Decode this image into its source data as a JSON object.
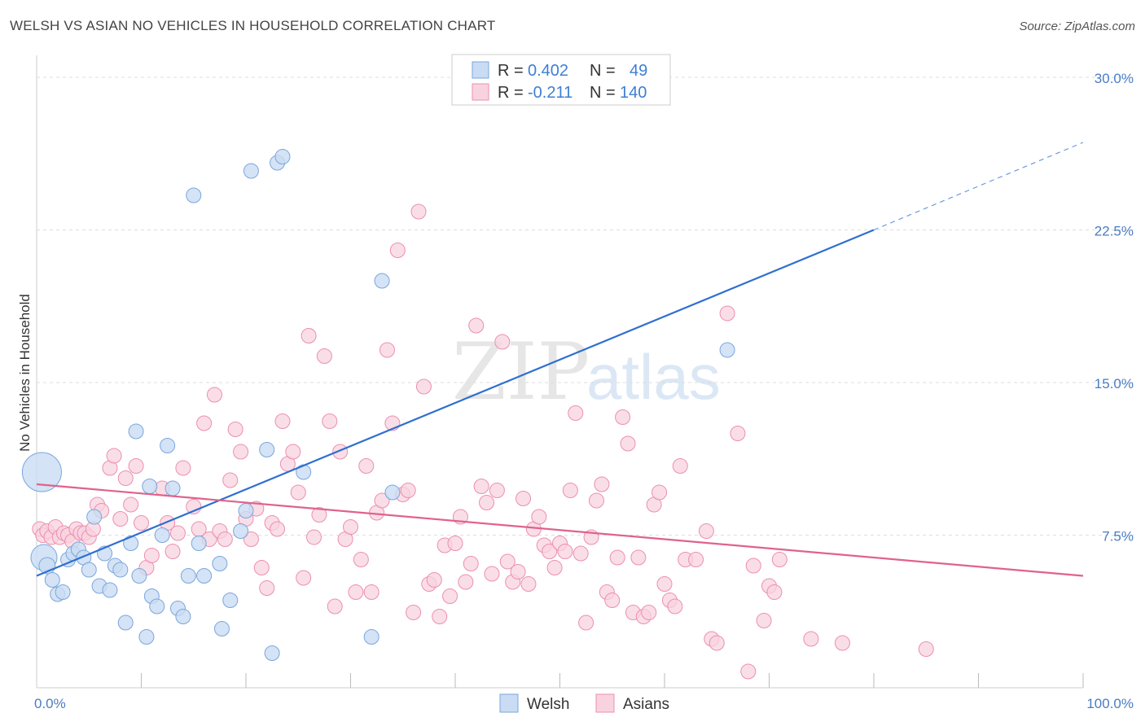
{
  "title": "WELSH VS ASIAN NO VEHICLES IN HOUSEHOLD CORRELATION CHART",
  "source": "Source: ZipAtlas.com",
  "watermark": {
    "zip": "ZIP",
    "atlas": "atlas"
  },
  "colors": {
    "welsh_fill": "#c9dcf3",
    "welsh_stroke": "#7aa6de",
    "welsh_line": "#2f6fd0",
    "asian_fill": "#f8d3df",
    "asian_stroke": "#ec8fae",
    "asian_line": "#e0628c",
    "grid": "#dddddd",
    "axis_label": "#4a7cc4"
  },
  "legend": {
    "welsh": {
      "r_label": "R =",
      "r_value": "0.402",
      "n_label": "N =",
      "n_value": "49"
    },
    "asians": {
      "r_label": "R =",
      "r_value": "-0.211",
      "n_label": "N =",
      "n_value": "140"
    }
  },
  "chart_data": {
    "type": "scatter",
    "title": "WELSH VS ASIAN NO VEHICLES IN HOUSEHOLD CORRELATION CHART",
    "xlabel": "",
    "ylabel": "No Vehicles in Household",
    "xlim": [
      0,
      100
    ],
    "ylim": [
      0,
      30
    ],
    "x_tick_labels": [
      "0.0%",
      "100.0%"
    ],
    "y_ticks": [
      7.5,
      15.0,
      22.5,
      30.0
    ],
    "y_tick_labels": [
      "7.5%",
      "15.0%",
      "22.5%",
      "30.0%"
    ],
    "grid": true,
    "legend_position": "top-center",
    "series": [
      {
        "name": "Welsh",
        "r": 0.402,
        "n": 49,
        "trend": {
          "x0": 0,
          "y0": 5.5,
          "x1": 80,
          "y1": 22.5,
          "dashed_to_x": 100,
          "dashed_to_y": 26.8
        },
        "points": [
          [
            0.5,
            10.6,
            24
          ],
          [
            0.7,
            6.4,
            16
          ],
          [
            1.0,
            6.0,
            10
          ],
          [
            1.5,
            5.3,
            9
          ],
          [
            2.0,
            4.6,
            9
          ],
          [
            2.5,
            4.7,
            9
          ],
          [
            3.0,
            6.3,
            9
          ],
          [
            3.5,
            6.6,
            9
          ],
          [
            4.0,
            6.8,
            9
          ],
          [
            4.5,
            6.4,
            9
          ],
          [
            5.0,
            5.8,
            9
          ],
          [
            5.5,
            8.4,
            9
          ],
          [
            6.0,
            5.0,
            9
          ],
          [
            6.5,
            6.6,
            9
          ],
          [
            7.0,
            4.8,
            9
          ],
          [
            7.5,
            6.0,
            9
          ],
          [
            8.0,
            5.8,
            9
          ],
          [
            8.5,
            3.2,
            9
          ],
          [
            9.0,
            7.1,
            9
          ],
          [
            9.5,
            12.6,
            9
          ],
          [
            9.8,
            5.5,
            9
          ],
          [
            10.5,
            2.5,
            9
          ],
          [
            10.8,
            9.9,
            9
          ],
          [
            11.0,
            4.5,
            9
          ],
          [
            11.5,
            4.0,
            9
          ],
          [
            12.0,
            7.5,
            9
          ],
          [
            12.5,
            11.9,
            9
          ],
          [
            13.0,
            9.8,
            9
          ],
          [
            13.5,
            3.9,
            9
          ],
          [
            14.0,
            3.5,
            9
          ],
          [
            14.5,
            5.5,
            9
          ],
          [
            15.0,
            24.2,
            9
          ],
          [
            15.5,
            7.1,
            9
          ],
          [
            16.0,
            5.5,
            9
          ],
          [
            17.5,
            6.1,
            9
          ],
          [
            17.7,
            2.9,
            9
          ],
          [
            18.5,
            4.3,
            9
          ],
          [
            19.5,
            7.7,
            9
          ],
          [
            20.0,
            8.7,
            9
          ],
          [
            20.5,
            25.4,
            9
          ],
          [
            22.0,
            11.7,
            9
          ],
          [
            22.5,
            1.7,
            9
          ],
          [
            23.0,
            25.8,
            9
          ],
          [
            23.5,
            26.1,
            9
          ],
          [
            25.5,
            10.6,
            9
          ],
          [
            32.0,
            2.5,
            9
          ],
          [
            33.0,
            20.0,
            9
          ],
          [
            34.0,
            9.6,
            9
          ],
          [
            66.0,
            16.6,
            9
          ]
        ]
      },
      {
        "name": "Asians",
        "r": -0.211,
        "n": 140,
        "trend": {
          "x0": 0,
          "y0": 10.0,
          "x1": 100,
          "y1": 5.5
        },
        "points": [
          [
            0.3,
            7.8,
            9
          ],
          [
            0.6,
            7.5,
            9
          ],
          [
            1.0,
            7.7,
            9
          ],
          [
            1.4,
            7.4,
            9
          ],
          [
            1.8,
            7.9,
            9
          ],
          [
            2.2,
            7.4,
            9
          ],
          [
            2.6,
            7.6,
            9
          ],
          [
            3.0,
            7.5,
            9
          ],
          [
            3.4,
            7.2,
            9
          ],
          [
            3.8,
            7.8,
            9
          ],
          [
            4.2,
            7.6,
            9
          ],
          [
            4.6,
            7.6,
            9
          ],
          [
            5.0,
            7.4,
            9
          ],
          [
            5.4,
            7.8,
            9
          ],
          [
            5.8,
            9.0,
            9
          ],
          [
            6.2,
            8.7,
            9
          ],
          [
            7.0,
            10.8,
            9
          ],
          [
            7.4,
            11.4,
            9
          ],
          [
            8.0,
            8.3,
            9
          ],
          [
            8.5,
            10.3,
            9
          ],
          [
            9.0,
            9.0,
            9
          ],
          [
            9.5,
            10.9,
            9
          ],
          [
            10.0,
            8.1,
            9
          ],
          [
            10.5,
            5.9,
            9
          ],
          [
            11.0,
            6.5,
            9
          ],
          [
            12.0,
            9.8,
            9
          ],
          [
            12.5,
            8.1,
            9
          ],
          [
            13.0,
            6.7,
            9
          ],
          [
            13.5,
            7.6,
            9
          ],
          [
            14.0,
            10.8,
            9
          ],
          [
            15.0,
            8.9,
            9
          ],
          [
            15.5,
            7.8,
            9
          ],
          [
            16.0,
            13.0,
            9
          ],
          [
            16.5,
            7.3,
            9
          ],
          [
            17.0,
            14.4,
            9
          ],
          [
            17.5,
            7.7,
            9
          ],
          [
            18.0,
            7.3,
            9
          ],
          [
            18.5,
            10.2,
            9
          ],
          [
            19.0,
            12.7,
            9
          ],
          [
            19.5,
            11.6,
            9
          ],
          [
            20.0,
            8.3,
            9
          ],
          [
            20.5,
            7.3,
            9
          ],
          [
            21.0,
            8.8,
            9
          ],
          [
            21.5,
            5.9,
            9
          ],
          [
            22.0,
            4.9,
            9
          ],
          [
            22.5,
            8.1,
            9
          ],
          [
            23.0,
            7.8,
            9
          ],
          [
            23.5,
            13.1,
            9
          ],
          [
            24.0,
            11.0,
            9
          ],
          [
            24.5,
            11.6,
            9
          ],
          [
            25.0,
            9.6,
            9
          ],
          [
            25.5,
            5.4,
            9
          ],
          [
            26.0,
            17.3,
            9
          ],
          [
            26.5,
            7.4,
            9
          ],
          [
            27.0,
            8.5,
            9
          ],
          [
            27.5,
            16.3,
            9
          ],
          [
            28.0,
            13.1,
            9
          ],
          [
            28.5,
            4.0,
            9
          ],
          [
            29.0,
            11.6,
            9
          ],
          [
            29.5,
            7.3,
            9
          ],
          [
            30.0,
            7.9,
            9
          ],
          [
            30.5,
            4.7,
            9
          ],
          [
            31.0,
            6.3,
            9
          ],
          [
            31.5,
            10.9,
            9
          ],
          [
            32.0,
            4.7,
            9
          ],
          [
            32.5,
            8.6,
            9
          ],
          [
            33.0,
            9.2,
            9
          ],
          [
            33.5,
            16.6,
            9
          ],
          [
            34.0,
            13.0,
            9
          ],
          [
            34.5,
            21.5,
            9
          ],
          [
            35.0,
            9.5,
            9
          ],
          [
            35.5,
            9.7,
            9
          ],
          [
            36.0,
            3.7,
            9
          ],
          [
            36.5,
            23.4,
            9
          ],
          [
            37.0,
            14.8,
            9
          ],
          [
            37.5,
            5.1,
            9
          ],
          [
            38.0,
            5.3,
            9
          ],
          [
            38.5,
            3.5,
            9
          ],
          [
            39.0,
            7.0,
            9
          ],
          [
            39.5,
            4.5,
            9
          ],
          [
            40.0,
            7.1,
            9
          ],
          [
            40.5,
            8.4,
            9
          ],
          [
            41.0,
            5.2,
            9
          ],
          [
            41.5,
            6.1,
            9
          ],
          [
            42.0,
            17.8,
            9
          ],
          [
            42.5,
            9.9,
            9
          ],
          [
            43.0,
            9.1,
            9
          ],
          [
            43.5,
            5.6,
            9
          ],
          [
            44.0,
            9.7,
            9
          ],
          [
            44.5,
            17.0,
            9
          ],
          [
            45.0,
            6.2,
            9
          ],
          [
            45.5,
            5.2,
            9
          ],
          [
            46.0,
            5.7,
            9
          ],
          [
            46.5,
            9.3,
            9
          ],
          [
            47.0,
            5.1,
            9
          ],
          [
            47.5,
            7.8,
            9
          ],
          [
            48.0,
            8.4,
            9
          ],
          [
            48.5,
            7.0,
            9
          ],
          [
            49.0,
            6.7,
            9
          ],
          [
            49.5,
            5.9,
            9
          ],
          [
            50.0,
            7.1,
            9
          ],
          [
            50.5,
            6.7,
            9
          ],
          [
            51.0,
            9.7,
            9
          ],
          [
            51.5,
            13.5,
            9
          ],
          [
            52.0,
            6.6,
            9
          ],
          [
            52.5,
            3.2,
            9
          ],
          [
            53.0,
            7.4,
            9
          ],
          [
            53.5,
            9.2,
            9
          ],
          [
            54.0,
            10.0,
            9
          ],
          [
            54.5,
            4.7,
            9
          ],
          [
            55.0,
            4.3,
            9
          ],
          [
            55.5,
            6.4,
            9
          ],
          [
            56.0,
            13.3,
            9
          ],
          [
            56.5,
            12.0,
            9
          ],
          [
            57.0,
            3.7,
            9
          ],
          [
            57.5,
            6.4,
            9
          ],
          [
            58.0,
            3.5,
            9
          ],
          [
            58.5,
            3.7,
            9
          ],
          [
            59.0,
            9.0,
            9
          ],
          [
            59.5,
            9.6,
            9
          ],
          [
            60.0,
            5.1,
            9
          ],
          [
            60.5,
            4.3,
            9
          ],
          [
            61.0,
            4.0,
            9
          ],
          [
            61.5,
            10.9,
            9
          ],
          [
            62.0,
            6.3,
            9
          ],
          [
            63.0,
            6.3,
            9
          ],
          [
            64.0,
            7.7,
            9
          ],
          [
            64.5,
            2.4,
            9
          ],
          [
            65.0,
            2.2,
            9
          ],
          [
            66.0,
            18.4,
            9
          ],
          [
            67.0,
            12.5,
            9
          ],
          [
            68.0,
            0.8,
            9
          ],
          [
            68.5,
            6.0,
            9
          ],
          [
            69.5,
            3.3,
            9
          ],
          [
            70.0,
            5.0,
            9
          ],
          [
            70.5,
            4.7,
            9
          ],
          [
            71.0,
            6.3,
            9
          ],
          [
            74.0,
            2.4,
            9
          ],
          [
            77.0,
            2.2,
            9
          ],
          [
            85.0,
            1.9,
            9
          ]
        ]
      }
    ]
  }
}
